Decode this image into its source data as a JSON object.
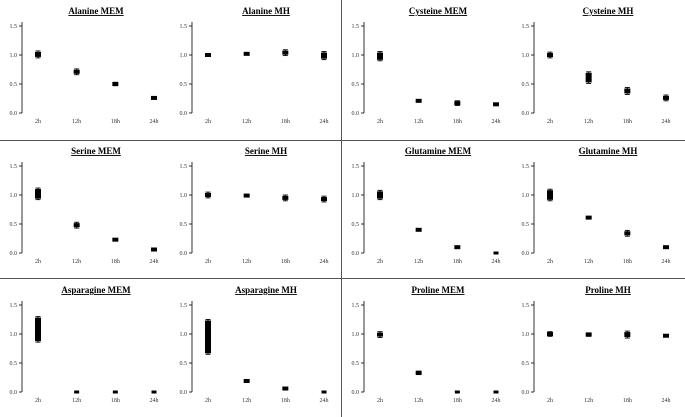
{
  "chart_data": [
    {
      "type": "scatter",
      "title": "Alanine MEM",
      "categories": [
        "2h",
        "12h",
        "18h",
        "24h"
      ],
      "ylim": [
        0,
        1.5
      ],
      "yticks": [
        "0.0",
        "0.5",
        "1.0",
        "1.5"
      ],
      "series": [
        {
          "values": [
            1.01,
            0.71,
            0.5,
            0.26
          ],
          "errors": [
            0.06,
            0.05,
            0.03,
            0.02
          ]
        }
      ]
    },
    {
      "type": "scatter",
      "title": "Alanine MH",
      "categories": [
        "2h",
        "12h",
        "18h",
        "24h"
      ],
      "ylim": [
        0,
        1.5
      ],
      "yticks": [
        "0.0",
        "0.5",
        "1.0",
        "1.5"
      ],
      "series": [
        {
          "values": [
            1.0,
            1.02,
            1.04,
            0.99
          ],
          "errors": [
            0.02,
            0.02,
            0.05,
            0.07
          ]
        }
      ]
    },
    {
      "type": "scatter",
      "title": "Cysteine MEM",
      "categories": [
        "2h",
        "12h",
        "18h",
        "24h"
      ],
      "ylim": [
        0,
        1.5
      ],
      "yticks": [
        "0.0",
        "0.5",
        "1.0",
        "1.5"
      ],
      "series": [
        {
          "values": [
            0.98,
            0.21,
            0.17,
            0.15
          ],
          "errors": [
            0.08,
            0.01,
            0.04,
            0.02
          ]
        }
      ]
    },
    {
      "type": "scatter",
      "title": "Cysteine MH",
      "categories": [
        "2h",
        "12h",
        "18h",
        "24h"
      ],
      "ylim": [
        0,
        1.5
      ],
      "yticks": [
        "0.0",
        "0.5",
        "1.0",
        "1.5"
      ],
      "series": [
        {
          "values": [
            1.0,
            0.61,
            0.38,
            0.26
          ],
          "errors": [
            0.05,
            0.1,
            0.06,
            0.05
          ]
        }
      ]
    },
    {
      "type": "scatter",
      "title": "Serine MEM",
      "categories": [
        "2h",
        "12h",
        "18h",
        "24h"
      ],
      "ylim": [
        0,
        1.5
      ],
      "yticks": [
        "0.0",
        "0.5",
        "1.0",
        "1.5"
      ],
      "series": [
        {
          "values": [
            1.02,
            0.48,
            0.23,
            0.06
          ],
          "errors": [
            0.1,
            0.05,
            0.02,
            0.01
          ]
        }
      ]
    },
    {
      "type": "scatter",
      "title": "Serine MH",
      "categories": [
        "2h",
        "12h",
        "18h",
        "24h"
      ],
      "ylim": [
        0,
        1.5
      ],
      "yticks": [
        "0.0",
        "0.5",
        "1.0",
        "1.5"
      ],
      "series": [
        {
          "values": [
            1.0,
            0.99,
            0.95,
            0.93
          ],
          "errors": [
            0.05,
            0.02,
            0.05,
            0.05
          ]
        }
      ]
    },
    {
      "type": "scatter",
      "title": "Glutamine MEM",
      "categories": [
        "2h",
        "12h",
        "18h",
        "24h"
      ],
      "ylim": [
        0,
        1.5
      ],
      "yticks": [
        "0.0",
        "0.5",
        "1.0",
        "1.5"
      ],
      "series": [
        {
          "values": [
            1.0,
            0.4,
            0.1,
            0.0
          ],
          "errors": [
            0.08,
            0.01,
            0.01,
            0.0
          ]
        }
      ]
    },
    {
      "type": "scatter",
      "title": "Glutamine MH",
      "categories": [
        "2h",
        "12h",
        "18h",
        "24h"
      ],
      "ylim": [
        0,
        1.5
      ],
      "yticks": [
        "0.0",
        "0.5",
        "1.0",
        "1.5"
      ],
      "series": [
        {
          "values": [
            1.0,
            0.61,
            0.34,
            0.1
          ],
          "errors": [
            0.1,
            0.02,
            0.05,
            0.01
          ]
        }
      ]
    },
    {
      "type": "scatter",
      "title": "Asparagine MEM",
      "categories": [
        "2h",
        "12h",
        "18h",
        "24h"
      ],
      "ylim": [
        0,
        1.5
      ],
      "yticks": [
        "0.0",
        "0.5",
        "1.0",
        "1.5"
      ],
      "series": [
        {
          "values": [
            1.08,
            0.0,
            0.0,
            0.0
          ],
          "errors": [
            0.22,
            0.0,
            0.0,
            0.0
          ]
        }
      ]
    },
    {
      "type": "scatter",
      "title": "Asparagine MH",
      "categories": [
        "2h",
        "12h",
        "18h",
        "24h"
      ],
      "ylim": [
        0,
        1.5
      ],
      "yticks": [
        "0.0",
        "0.5",
        "1.0",
        "1.5"
      ],
      "series": [
        {
          "values": [
            0.95,
            0.19,
            0.06,
            0.0
          ],
          "errors": [
            0.3,
            0.02,
            0.01,
            0.0
          ]
        }
      ]
    },
    {
      "type": "scatter",
      "title": "Proline MEM",
      "categories": [
        "2h",
        "12h",
        "18h",
        "24h"
      ],
      "ylim": [
        0,
        1.5
      ],
      "yticks": [
        "0.0",
        "0.5",
        "1.0",
        "1.5"
      ],
      "series": [
        {
          "values": [
            0.99,
            0.33,
            0.0,
            0.0
          ],
          "errors": [
            0.05,
            0.03,
            0.0,
            0.0
          ]
        }
      ]
    },
    {
      "type": "scatter",
      "title": "Proline MH",
      "categories": [
        "2h",
        "12h",
        "18h",
        "24h"
      ],
      "ylim": [
        0,
        1.5
      ],
      "yticks": [
        "0.0",
        "0.5",
        "1.0",
        "1.5"
      ],
      "series": [
        {
          "values": [
            1.0,
            0.99,
            0.99,
            0.97
          ],
          "errors": [
            0.04,
            0.03,
            0.06,
            0.02
          ]
        }
      ]
    }
  ]
}
